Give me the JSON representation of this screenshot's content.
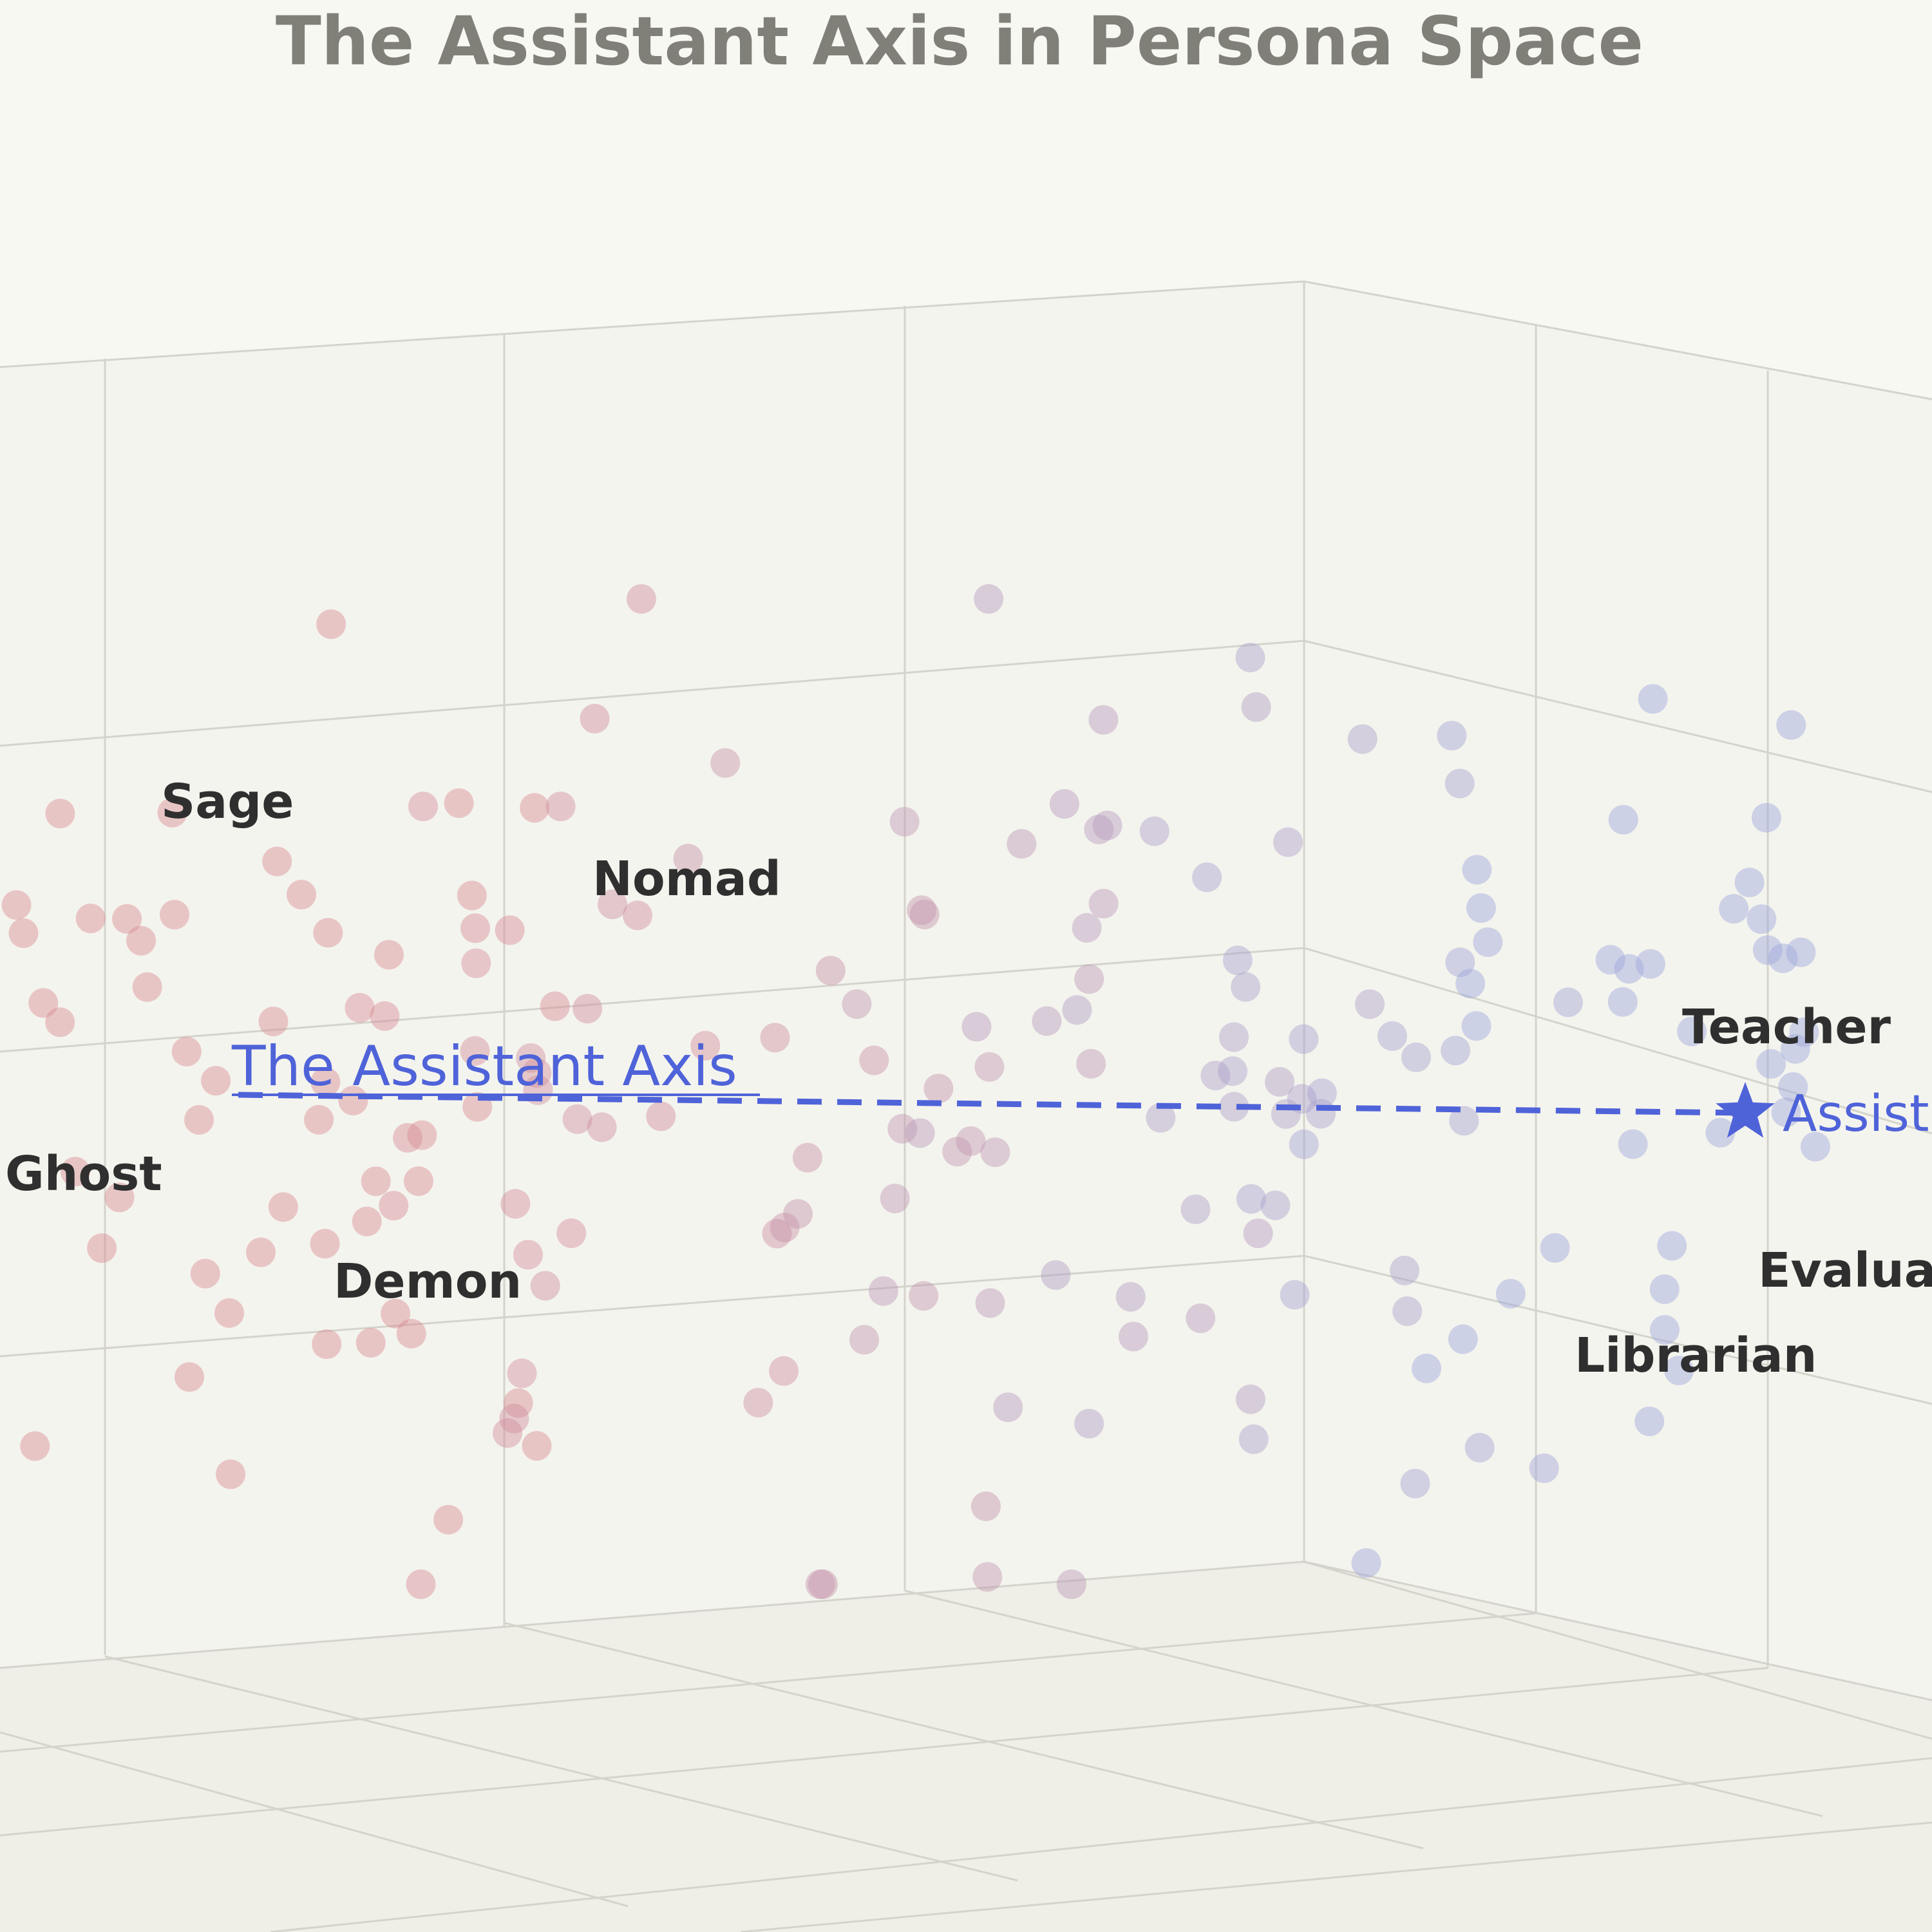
{
  "chart_data": {
    "type": "scatter",
    "title": "The Assistant Axis in Persona Space",
    "axis_annotation": "The Assistant Axis",
    "target": {
      "label": "Assist",
      "icon": "star-icon",
      "color": "#4f63d9"
    },
    "colors": {
      "role_like": "#d98b93",
      "assistant_like": "#9ea7dc",
      "axis": "#4f63d9"
    },
    "labels": [
      {
        "id": "sage",
        "text": "Sage"
      },
      {
        "id": "nomad",
        "text": "Nomad"
      },
      {
        "id": "ghost",
        "text": "Ghost"
      },
      {
        "id": "demon",
        "text": "Demon"
      },
      {
        "id": "teacher",
        "text": "Teacher"
      },
      {
        "id": "evaluator",
        "text": "Evalua"
      },
      {
        "id": "librarian",
        "text": "Librarian"
      }
    ],
    "point_count": 210,
    "grid": true
  }
}
